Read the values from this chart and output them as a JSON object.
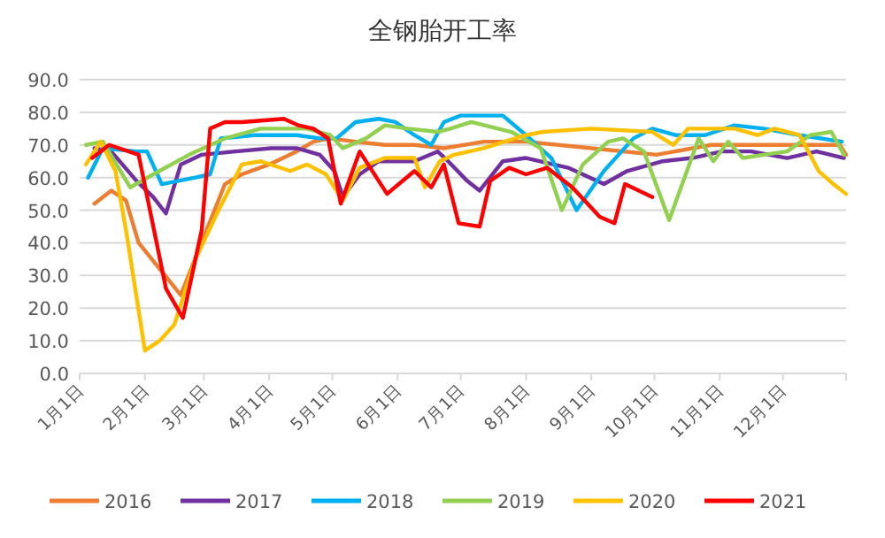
{
  "chart_data": {
    "type": "line",
    "title": "全钢胎开工率",
    "xlim": [
      "--01-01",
      "--12-31"
    ],
    "xticks": [
      {
        "value": "--01-01",
        "label": "1月1日"
      },
      {
        "value": "--02-01",
        "label": "2月1日"
      },
      {
        "value": "--03-01",
        "label": "3月1日"
      },
      {
        "value": "--04-01",
        "label": "4月1日"
      },
      {
        "value": "--05-01",
        "label": "5月1日"
      },
      {
        "value": "--06-01",
        "label": "6月1日"
      },
      {
        "value": "--07-01",
        "label": "7月1日"
      },
      {
        "value": "--08-01",
        "label": "8月1日"
      },
      {
        "value": "--09-01",
        "label": "9月1日"
      },
      {
        "value": "--10-01",
        "label": "10月1日"
      },
      {
        "value": "--11-01",
        "label": "11月1日"
      },
      {
        "value": "--12-01",
        "label": "12月1日"
      }
    ],
    "ylim": [
      0,
      90
    ],
    "yticks": [
      {
        "value": 0,
        "label": "0.0"
      },
      {
        "value": 10,
        "label": "10.0"
      },
      {
        "value": 20,
        "label": "20.0"
      },
      {
        "value": 30,
        "label": "30.0"
      },
      {
        "value": 40,
        "label": "40.0"
      },
      {
        "value": 50,
        "label": "50.0"
      },
      {
        "value": 60,
        "label": "60.0"
      },
      {
        "value": 70,
        "label": "70.0"
      },
      {
        "value": 80,
        "label": "80.0"
      },
      {
        "value": 90,
        "label": "90.0"
      }
    ],
    "grid": "y",
    "legend": "bottom",
    "series": [
      {
        "name": "2016",
        "color": "#ed7d31",
        "x": [
          "--01-08",
          "--01-16",
          "--01-23",
          "--01-29",
          "--02-08",
          "--02-18",
          "--03-11",
          "--03-19",
          "--04-01",
          "--04-14",
          "--04-22",
          "--04-30",
          "--05-12",
          "--05-26",
          "--06-09",
          "--06-23",
          "--07-12",
          "--08-01",
          "--09-01",
          "--10-02",
          "--10-28",
          "--11-27",
          "--12-28",
          "--12-31"
        ],
        "values": [
          52,
          56,
          53,
          40,
          32,
          24,
          58,
          61,
          64,
          68,
          71,
          72,
          71,
          70,
          70,
          69,
          71,
          71,
          69,
          67,
          70,
          70,
          70,
          67
        ]
      },
      {
        "name": "2017",
        "color": "#7030a0",
        "x": [
          "--01-08",
          "--01-16",
          "--01-28",
          "--02-05",
          "--02-11",
          "--02-18",
          "--02-28",
          "--03-16",
          "--04-02",
          "--04-14",
          "--04-25",
          "--05-02",
          "--05-06",
          "--05-14",
          "--05-23",
          "--06-09",
          "--06-20",
          "--06-25",
          "--07-04",
          "--07-10",
          "--07-21",
          "--08-01",
          "--08-21",
          "--09-07",
          "--09-18",
          "--10-05",
          "--10-19",
          "--11-02",
          "--11-16",
          "--12-03",
          "--12-17",
          "--12-30"
        ],
        "values": [
          69,
          68,
          59,
          54,
          49,
          64,
          67,
          68,
          69,
          69,
          67,
          62,
          54,
          61,
          65,
          65,
          68,
          65,
          59,
          56,
          65,
          66,
          63,
          58,
          62,
          65,
          66,
          68,
          68,
          66,
          68,
          66
        ]
      },
      {
        "name": "2018",
        "color": "#00b0f0",
        "x": [
          "--01-05",
          "--01-12",
          "--01-28",
          "--02-02",
          "--02-09",
          "--02-25",
          "--03-04",
          "--03-09",
          "--03-25",
          "--04-14",
          "--04-25",
          "--05-03",
          "--05-12",
          "--05-23",
          "--05-31",
          "--06-09",
          "--06-17",
          "--06-23",
          "--07-01",
          "--07-21",
          "--08-01",
          "--08-13",
          "--08-25",
          "--09-07",
          "--09-21",
          "--09-30",
          "--10-11",
          "--10-25",
          "--11-08",
          "--11-22",
          "--12-09",
          "--12-29"
        ],
        "values": [
          60,
          69,
          68,
          68,
          58,
          60,
          61,
          72,
          73,
          73,
          72,
          72,
          77,
          78,
          77,
          73,
          70,
          77,
          79,
          79,
          73,
          66,
          50,
          62,
          72,
          75,
          73,
          73,
          76,
          75,
          73,
          71
        ]
      },
      {
        "name": "2019",
        "color": "#92d050",
        "x": [
          "--01-04",
          "--01-12",
          "--01-25",
          "--02-05",
          "--02-22",
          "--03-11",
          "--03-28",
          "--04-19",
          "--04-30",
          "--05-06",
          "--05-17",
          "--05-26",
          "--06-06",
          "--06-20",
          "--06-26",
          "--07-06",
          "--07-25",
          "--08-08",
          "--08-18",
          "--08-28",
          "--09-09",
          "--09-16",
          "--09-26",
          "--10-08",
          "--10-22",
          "--10-29",
          "--11-05",
          "--11-12",
          "--11-22",
          "--12-03",
          "--12-14",
          "--12-24",
          "--12-30"
        ],
        "values": [
          70,
          71,
          57,
          61,
          67,
          72,
          75,
          75,
          73,
          69,
          72,
          76,
          75,
          74,
          75,
          77,
          74,
          69,
          50,
          64,
          71,
          72,
          68,
          47,
          72,
          65,
          71,
          66,
          67,
          68,
          73,
          74,
          67
        ]
      },
      {
        "name": "2020",
        "color": "#ffc000",
        "x": [
          "--01-04",
          "--01-11",
          "--01-18",
          "--01-23",
          "--02-01",
          "--02-08",
          "--02-15",
          "--02-25",
          "--03-08",
          "--03-19",
          "--03-28",
          "--04-11",
          "--04-19",
          "--04-28",
          "--05-06",
          "--05-14",
          "--05-26",
          "--06-09",
          "--06-14",
          "--06-21",
          "--06-28",
          "--07-12",
          "--08-01",
          "--08-09",
          "--09-01",
          "--09-30",
          "--10-10",
          "--10-17",
          "--11-08",
          "--11-19",
          "--11-27",
          "--12-09",
          "--12-18",
          "--12-25",
          "--12-31"
        ],
        "values": [
          64,
          71,
          62,
          44,
          7,
          10,
          15,
          35,
          50,
          64,
          65,
          62,
          64,
          61,
          53,
          63,
          66,
          66,
          57,
          65,
          67,
          69,
          73,
          74,
          75,
          74,
          70,
          75,
          75,
          73,
          75,
          73,
          62,
          58,
          55
        ]
      },
      {
        "name": "2021",
        "color": "#ff0000",
        "x": [
          "--01-07",
          "--01-15",
          "--01-29",
          "--02-11",
          "--02-19",
          "--02-28",
          "--03-04",
          "--03-11",
          "--03-19",
          "--04-08",
          "--04-15",
          "--04-22",
          "--04-29",
          "--05-05",
          "--05-14",
          "--05-27",
          "--06-09",
          "--06-17",
          "--06-23",
          "--06-30",
          "--07-10",
          "--07-15",
          "--07-24",
          "--08-01",
          "--08-11",
          "--08-23",
          "--09-05",
          "--09-12",
          "--09-17",
          "--09-30"
        ],
        "values": [
          66,
          70,
          67,
          26,
          17,
          44,
          75,
          77,
          77,
          78,
          76,
          75,
          72,
          52,
          68,
          55,
          62,
          57,
          64,
          46,
          45,
          59,
          63,
          61,
          63,
          57,
          48,
          46,
          58,
          54
        ]
      }
    ]
  }
}
